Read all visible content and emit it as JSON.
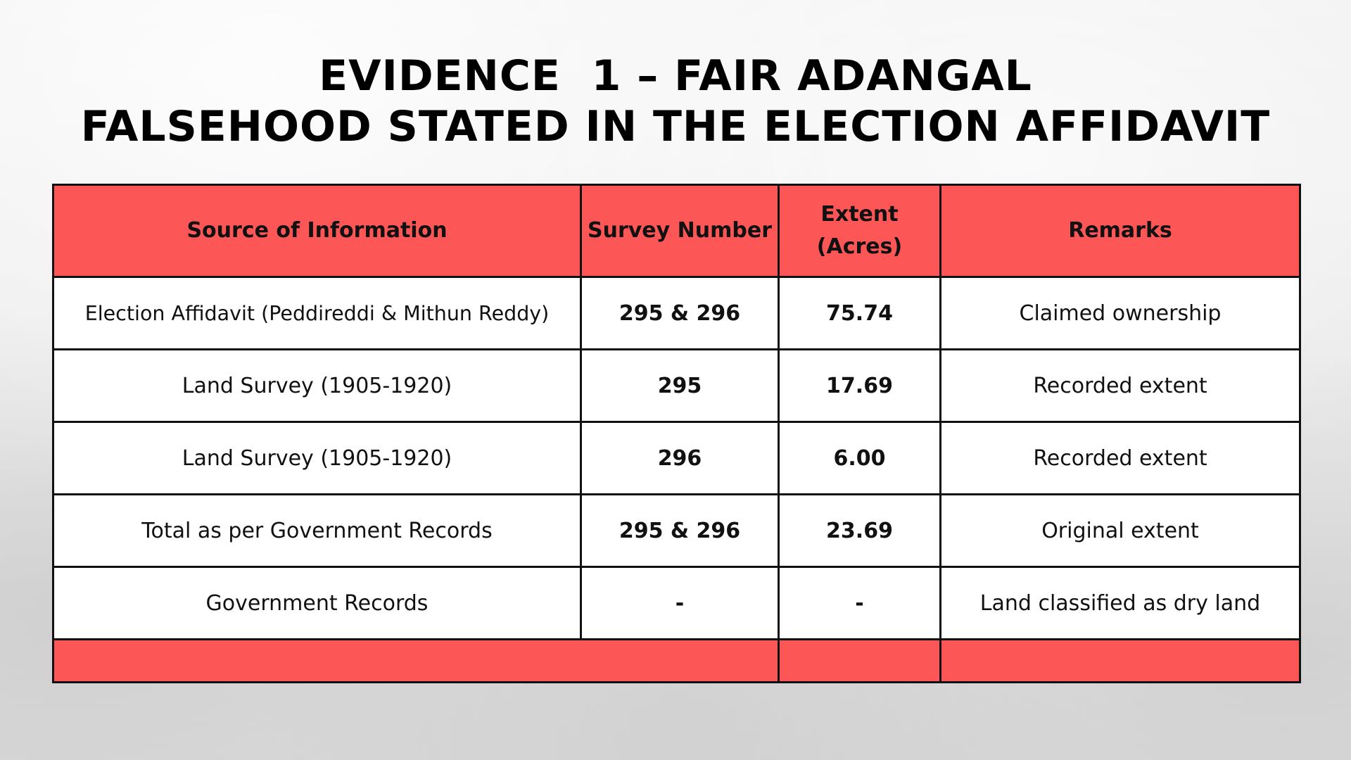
{
  "title": {
    "line1": "EVIDENCE  1 – FAIR ADANGAL",
    "line2": "FALSEHOOD STATED IN THE ELECTION AFFIDAVIT"
  },
  "table": {
    "headers": {
      "source": "Source of Information",
      "survey": "Survey Number",
      "extent_line1": "Extent",
      "extent_line2": "(Acres)",
      "remarks": "Remarks"
    },
    "rows": [
      {
        "source": "Election Affidavit (Peddireddi & Mithun Reddy)",
        "survey": "295 & 296",
        "extent": "75.74",
        "remarks": "Claimed ownership"
      },
      {
        "source": "Land Survey (1905-1920)",
        "survey": "295",
        "extent": "17.69",
        "remarks": "Recorded extent"
      },
      {
        "source": "Land Survey (1905-1920)",
        "survey": "296",
        "extent": "6.00",
        "remarks": "Recorded extent"
      },
      {
        "source": "Total as per Government Records",
        "survey": "295 & 296",
        "extent": "23.69",
        "remarks": "Original extent"
      },
      {
        "source": "Government Records",
        "survey": "-",
        "extent": "-",
        "remarks": "Land classified as dry land"
      }
    ]
  },
  "colors": {
    "header_bg": "#fc5656",
    "border": "#111111",
    "text": "#111111"
  }
}
